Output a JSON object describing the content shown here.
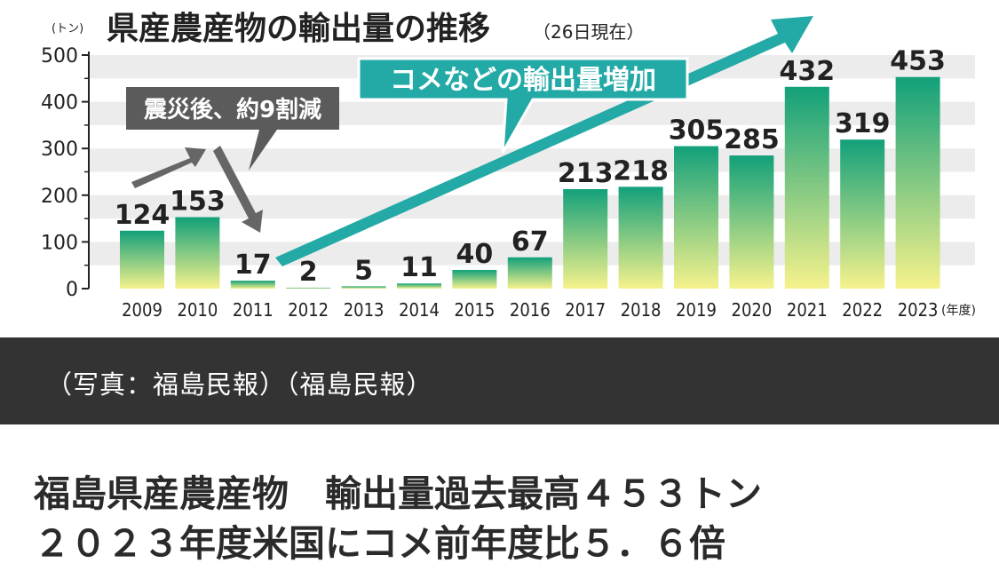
{
  "chart_data": {
    "type": "bar",
    "title": "県産農産物の輸出量の推移",
    "subtitle": "（26日現在）",
    "yunit": "(トン)",
    "xunit": "(年度)",
    "categories": [
      "2009",
      "2010",
      "2011",
      "2012",
      "2013",
      "2014",
      "2015",
      "2016",
      "2017",
      "2018",
      "2019",
      "2020",
      "2021",
      "2022",
      "2023"
    ],
    "values": [
      124,
      153,
      17,
      2,
      5,
      11,
      40,
      67,
      213,
      218,
      305,
      285,
      432,
      319,
      453
    ],
    "ylim": [
      0,
      500
    ],
    "yticks": [
      0,
      100,
      200,
      300,
      400,
      500
    ],
    "grid": true,
    "annotations": [
      {
        "text": "震災後、約9割減"
      },
      {
        "text": "コメなどの輸出量増加"
      }
    ],
    "colors": {
      "bar_top": "#1aa680",
      "bar_bottom": "#f4f08a",
      "callout_dark": "#5a5a5a",
      "callout_teal": "#22aaa6"
    }
  },
  "caption": "（写真：福島民報）（福島民報）",
  "headline": {
    "line1": "福島県産農産物　輸出量過去最高４５３トン",
    "line2": "２０２３年度米国にコメ前年度比５．６倍"
  }
}
